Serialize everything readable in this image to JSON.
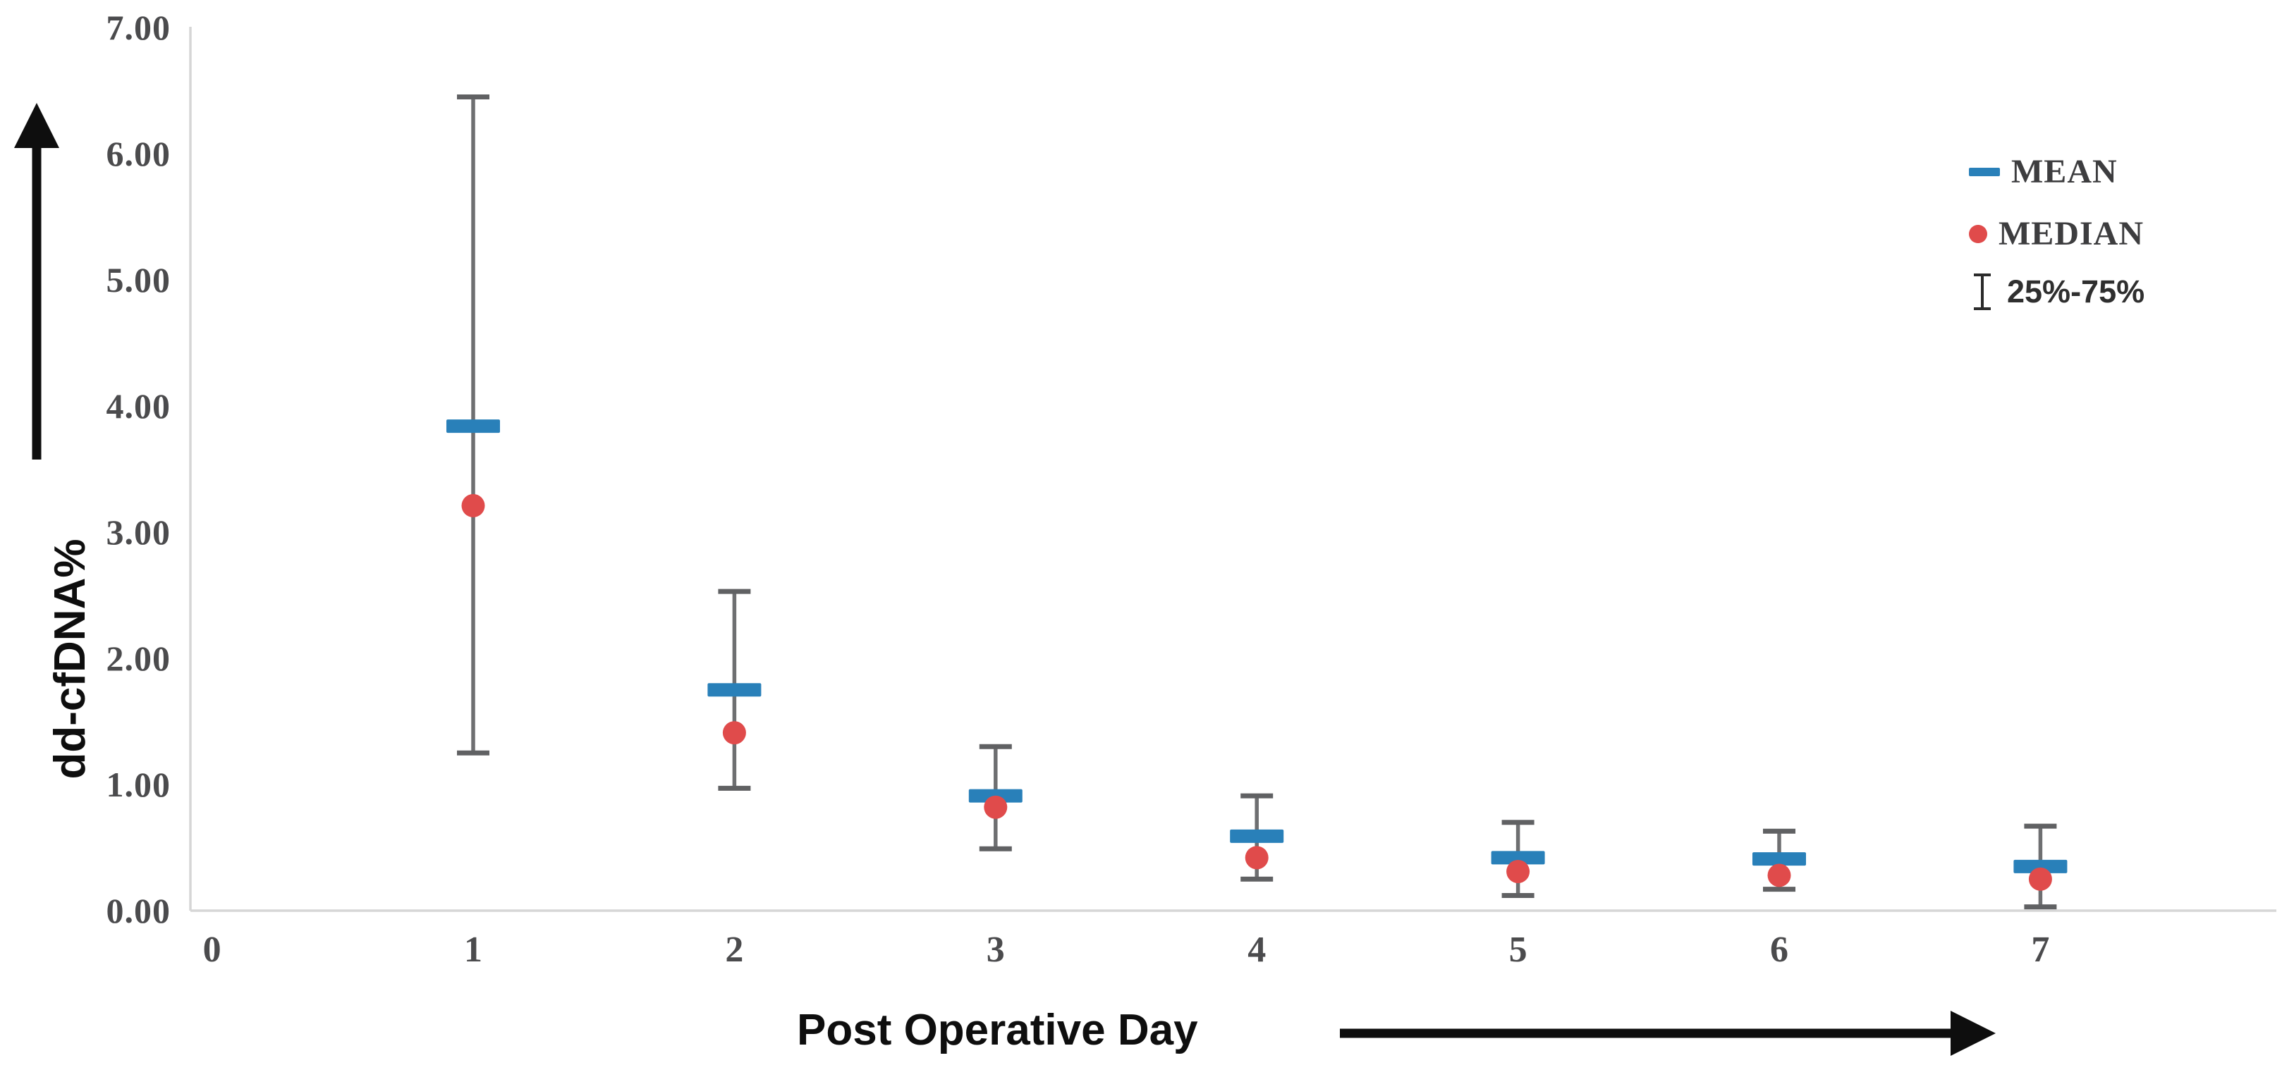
{
  "chart_data": {
    "type": "scatter",
    "title": "",
    "xlabel": "Post Operative Day",
    "ylabel": "dd-cfDNA%",
    "categories": [
      "0",
      "1",
      "2",
      "3",
      "4",
      "5",
      "6",
      "7"
    ],
    "y_ticks": [
      "0.00",
      "1.00",
      "2.00",
      "3.00",
      "4.00",
      "5.00",
      "6.00",
      "7.00"
    ],
    "ylim": [
      0,
      7
    ],
    "grid": "off",
    "legend_position": "upper-right",
    "days": [
      1,
      2,
      3,
      4,
      5,
      6,
      7
    ],
    "series": [
      {
        "name": "MEAN",
        "marker": "dash",
        "values": [
          3.84,
          1.75,
          0.91,
          0.59,
          0.42,
          0.41,
          0.35
        ]
      },
      {
        "name": "MEDIAN",
        "marker": "dot",
        "values": [
          3.21,
          1.41,
          0.82,
          0.42,
          0.31,
          0.28,
          0.25
        ]
      },
      {
        "name": "25%-75%",
        "marker": "error-bar",
        "q25": [
          1.25,
          0.97,
          0.49,
          0.25,
          0.12,
          0.17,
          0.03
        ],
        "q75": [
          6.45,
          2.53,
          1.3,
          0.91,
          0.7,
          0.63,
          0.67
        ]
      }
    ],
    "legend": [
      {
        "label": "MEAN"
      },
      {
        "label": "MEDIAN"
      },
      {
        "label": "25%-75%"
      }
    ],
    "colors": {
      "mean": "#2980b9",
      "median": "#e04b4b",
      "whisker": "#6e6f71",
      "axis_line": "#d6d6d6",
      "tick_label": "#4b4b4d",
      "title": "#0e0e0e"
    }
  }
}
